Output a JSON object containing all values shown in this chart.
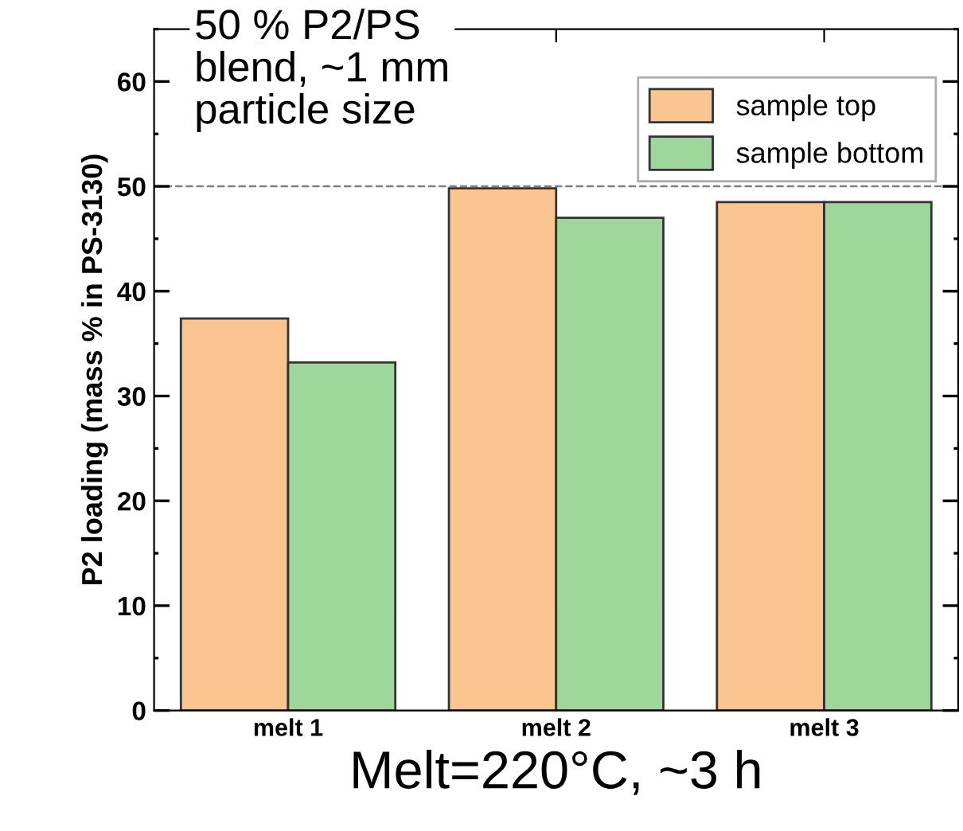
{
  "chart_data": {
    "type": "bar",
    "categories": [
      "melt 1",
      "melt 2",
      "melt 3"
    ],
    "series": [
      {
        "name": "sample top",
        "color": "#fac591",
        "values": [
          37.4,
          49.8,
          48.5
        ]
      },
      {
        "name": "sample bottom",
        "color": "#9ed69b",
        "values": [
          33.2,
          47.0,
          48.5
        ]
      }
    ],
    "xlabel": "Melt=220°C, ~3 h",
    "ylabel": "P2 loading (mass % in PS-3130)",
    "annotations": [
      "50 % P2/PS\nblend, ~1 mm\nparticle size"
    ],
    "ylim": [
      0,
      65
    ],
    "yticks": [
      0,
      10,
      20,
      30,
      40,
      50,
      60
    ],
    "ref_lines": [
      {
        "axis": "y",
        "value": 50,
        "color": "#808080",
        "line_style": "dashed"
      }
    ],
    "legend": "top right",
    "grid": false
  }
}
